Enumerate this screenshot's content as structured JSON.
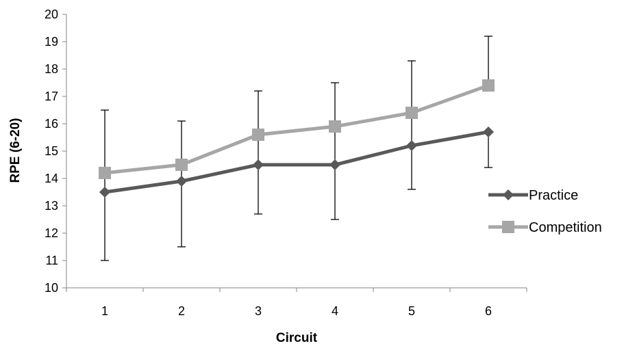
{
  "chart_data": {
    "type": "line",
    "title": "",
    "xlabel": "Circuit",
    "ylabel": "RPE (6-20)",
    "categories": [
      "1",
      "2",
      "3",
      "4",
      "5",
      "6"
    ],
    "ylim": [
      10,
      20
    ],
    "yticks": [
      "10",
      "11",
      "12",
      "13",
      "14",
      "15",
      "16",
      "17",
      "18",
      "19",
      "20"
    ],
    "grid": false,
    "legend_position": "right",
    "series": [
      {
        "name": "Practice",
        "values": [
          13.5,
          13.9,
          14.5,
          14.5,
          15.2,
          15.7
        ],
        "error_low": [
          11.0,
          11.5,
          12.7,
          12.5,
          13.6,
          14.4
        ],
        "error_high": [
          16.5,
          16.1,
          17.2,
          17.5,
          18.3,
          15.7
        ],
        "marker": "diamond",
        "color": "#595959"
      },
      {
        "name": "Competition",
        "values": [
          14.2,
          14.5,
          15.6,
          15.9,
          16.4,
          17.4
        ],
        "error_low": [
          14.2,
          14.5,
          15.6,
          15.9,
          16.4,
          17.4
        ],
        "error_high": [
          14.2,
          14.5,
          15.6,
          15.9,
          16.4,
          19.2
        ],
        "marker": "square",
        "color": "#a6a6a6"
      }
    ]
  }
}
